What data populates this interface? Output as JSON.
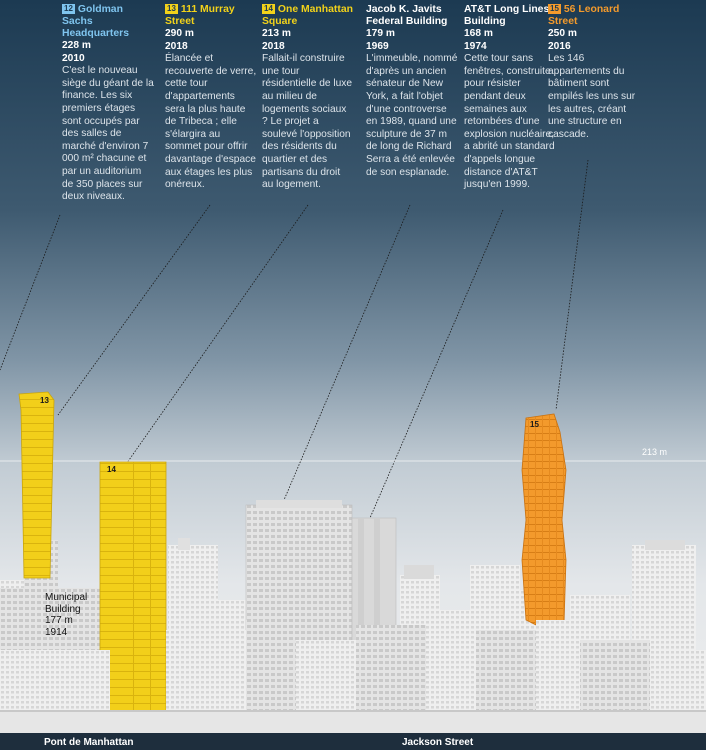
{
  "columns": [
    {
      "badge": "12",
      "badge_color": "blue",
      "title": "Goldman Sachs Headquarters",
      "height": "228 m",
      "year": "2010",
      "description": "C'est le nouveau siège du géant de la finance. Les six premiers étages sont occupés par des salles de marché d'environ 7 000 m² chacune et par un auditorium de 350 places sur deux niveaux."
    },
    {
      "badge": "13",
      "badge_color": "yellow",
      "title": "111 Murray Street",
      "height": "290 m",
      "year": "2018",
      "description": "Élancée et recouverte de verre, cette tour d'appartements sera la plus haute de Tribeca ; elle s'élargira au sommet pour offrir davantage d'espace aux étages les plus onéreux."
    },
    {
      "badge": "14",
      "badge_color": "yellow",
      "title": "One Manhattan Square",
      "height": "213 m",
      "year": "2018",
      "description": "Fallait-il construire une tour résidentielle de luxe au milieu de logements sociaux ? Le projet a soulevé l'opposition des résidents du quartier et des partisans du droit au logement."
    },
    {
      "badge": "",
      "badge_color": "white",
      "title": "Jacob K. Javits Federal Building",
      "height": "179 m",
      "year": "1969",
      "description": "L'immeuble, nommé d'après un ancien sénateur de New York, a fait l'objet d'une controverse en 1989, quand une sculpture de 37 m de long de Richard Serra a été enlevée de son esplanade."
    },
    {
      "badge": "",
      "badge_color": "white",
      "title": "AT&T Long Lines Building",
      "height": "168 m",
      "year": "1974",
      "description": "Cette tour sans fenêtres, construite pour résister pendant deux semaines aux retombées d'une explosion nucléaire, a abrité un standard d'appels longue distance d'AT&T jusqu'en 1999."
    },
    {
      "badge": "15",
      "badge_color": "orange",
      "title": "56 Leonard Street",
      "height": "250 m",
      "year": "2016",
      "description": "Les 146 appartements du bâtiment sont empilés les uns sur les autres, créant une structure en cascade."
    }
  ],
  "skyline": {
    "tower_labels": {
      "t13": "13",
      "t14": "14",
      "t15": "15"
    },
    "reference_line_label": "213 m",
    "municipal_building": {
      "name": "Municipal Building",
      "height": "177 m",
      "year": "1914"
    }
  },
  "bottom_labels": {
    "left": "Pont de Manhattan",
    "right": "Jackson Street"
  },
  "colors": {
    "yellow": "#f2d21a",
    "orange": "#f39a2c",
    "blue": "#7fc4ee",
    "sky_top": "#1c3a52"
  }
}
